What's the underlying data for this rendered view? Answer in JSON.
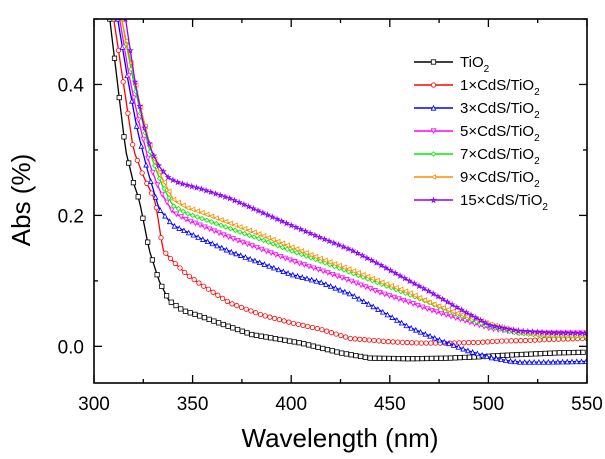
{
  "chart_data": {
    "type": "line",
    "title": "",
    "xlabel": "Wavelength (nm)",
    "ylabel": "Abs (%)",
    "xlim": [
      300,
      550
    ],
    "ylim": [
      -0.056,
      0.5
    ],
    "xticks": [
      300,
      350,
      400,
      450,
      500,
      550
    ],
    "xtick_labels": [
      "300",
      "350",
      "400",
      "450",
      "500",
      "550"
    ],
    "yticks": [
      0.0,
      0.2,
      0.4
    ],
    "ytick_labels": [
      "0.0",
      "0.2",
      "0.4"
    ],
    "grid": false,
    "legend_position": "top-right",
    "series": [
      {
        "name": "TiO2",
        "label_main": "TiO",
        "label_sub": "2",
        "color": "#000000",
        "marker": "square",
        "x": [
          308,
          312,
          316,
          320,
          323,
          328,
          333,
          338,
          345,
          355,
          364,
          380,
          405,
          425,
          440,
          460,
          480,
          495,
          506,
          520,
          535,
          550
        ],
        "y": [
          0.5,
          0.4,
          0.3,
          0.25,
          0.223,
          0.147,
          0.1,
          0.07,
          0.055,
          0.045,
          0.035,
          0.018,
          0.005,
          -0.01,
          -0.018,
          -0.019,
          -0.018,
          -0.016,
          -0.014,
          -0.012,
          -0.01,
          -0.009
        ]
      },
      {
        "name": "1×CdS/TiO2",
        "label_main": "1×CdS/TiO",
        "label_sub": "2",
        "color": "#ff0000",
        "marker": "circle",
        "x": [
          310,
          315,
          320,
          325,
          331,
          335,
          340,
          347,
          354,
          369,
          385,
          400,
          415,
          430,
          450,
          465,
          480,
          495,
          506,
          520,
          535,
          550
        ],
        "y": [
          0.5,
          0.4,
          0.3,
          0.26,
          0.223,
          0.147,
          0.13,
          0.11,
          0.095,
          0.066,
          0.048,
          0.036,
          0.026,
          0.012,
          0.007,
          0.005,
          0.005,
          0.006,
          0.008,
          0.009,
          0.011,
          0.012
        ]
      },
      {
        "name": "3×CdS/TiO2",
        "label_main": "3×CdS/TiO",
        "label_sub": "2",
        "color": "#0000ff",
        "marker": "triangle-up",
        "x": [
          312,
          317,
          322,
          327,
          333,
          340,
          347,
          354,
          369,
          385,
          400,
          415,
          430,
          445,
          460,
          475,
          490,
          501,
          510,
          516,
          530,
          550
        ],
        "y": [
          0.5,
          0.41,
          0.33,
          0.27,
          0.21,
          0.185,
          0.175,
          0.165,
          0.145,
          0.127,
          0.11,
          0.098,
          0.08,
          0.055,
          0.029,
          0.01,
          -0.007,
          -0.017,
          -0.022,
          -0.024,
          -0.024,
          -0.023
        ]
      },
      {
        "name": "5×CdS/TiO2",
        "label_main": "5×CdS/TiO",
        "label_sub": "2",
        "color": "#ff00ff",
        "marker": "triangle-down",
        "x": [
          313,
          318,
          323,
          328,
          333,
          340,
          347,
          354,
          369,
          385,
          400,
          415,
          430,
          445,
          460,
          470,
          485,
          501,
          515,
          530,
          550
        ],
        "y": [
          0.5,
          0.41,
          0.34,
          0.28,
          0.24,
          0.205,
          0.193,
          0.185,
          0.166,
          0.148,
          0.131,
          0.116,
          0.1,
          0.082,
          0.067,
          0.056,
          0.042,
          0.027,
          0.021,
          0.02,
          0.02
        ]
      },
      {
        "name": "7×CdS/TiO2",
        "label_main": "7×CdS/TiO",
        "label_sub": "2",
        "color": "#00ee00",
        "marker": "diamond",
        "x": [
          314,
          319,
          324,
          329,
          334,
          340,
          347,
          354,
          369,
          385,
          400,
          415,
          430,
          445,
          460,
          470,
          485,
          501,
          515,
          530,
          550
        ],
        "y": [
          0.5,
          0.42,
          0.35,
          0.29,
          0.25,
          0.215,
          0.203,
          0.196,
          0.18,
          0.163,
          0.146,
          0.13,
          0.113,
          0.096,
          0.079,
          0.067,
          0.048,
          0.03,
          0.02,
          0.016,
          0.015
        ]
      },
      {
        "name": "9×CdS/TiO2",
        "label_main": "9×CdS/TiO",
        "label_sub": "2",
        "color": "#ff8c00",
        "marker": "triangle-left",
        "x": [
          314,
          319,
          324,
          329,
          334,
          340,
          347,
          354,
          369,
          385,
          400,
          415,
          430,
          445,
          460,
          470,
          485,
          501,
          515,
          530,
          550
        ],
        "y": [
          0.5,
          0.43,
          0.36,
          0.3,
          0.26,
          0.225,
          0.212,
          0.205,
          0.188,
          0.17,
          0.152,
          0.134,
          0.117,
          0.099,
          0.082,
          0.067,
          0.05,
          0.034,
          0.022,
          0.017,
          0.016
        ]
      },
      {
        "name": "15×CdS/TiO2",
        "label_main": "15×CdS/TiO",
        "label_sub": "2",
        "color": "#8b00ff",
        "marker": "star",
        "x": [
          316,
          321,
          325,
          329,
          333,
          338,
          343,
          349,
          354,
          369,
          385,
          400,
          415,
          430,
          445,
          460,
          470,
          485,
          501,
          515,
          530,
          550
        ],
        "y": [
          0.5,
          0.4,
          0.34,
          0.3,
          0.275,
          0.257,
          0.25,
          0.245,
          0.241,
          0.226,
          0.205,
          0.185,
          0.166,
          0.148,
          0.125,
          0.1,
          0.084,
          0.058,
          0.032,
          0.024,
          0.021,
          0.02
        ]
      }
    ]
  }
}
